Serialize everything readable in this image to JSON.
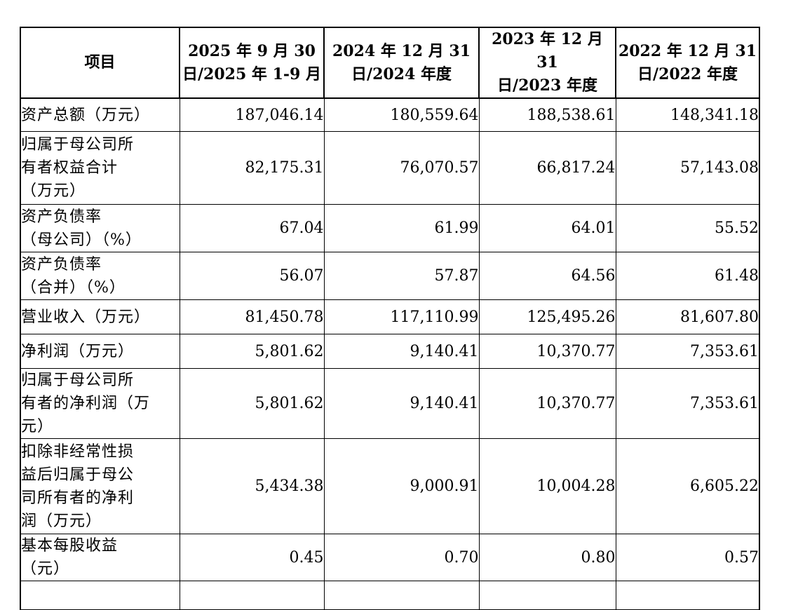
{
  "table": {
    "headers": [
      [
        "项目"
      ],
      [
        "2025 年 9 月 30",
        "日/2025 年 1-9 月"
      ],
      [
        "2024 年 12 月 31",
        "日/2024 年度"
      ],
      [
        "2023 年 12 月 31",
        "日/2023 年度"
      ],
      [
        "2022 年 12 月 31",
        "日/2022 年度"
      ]
    ],
    "rows": [
      {
        "label": [
          "资产总额（万元）"
        ],
        "values": [
          "187,046.14",
          "180,559.64",
          "188,538.61",
          "148,341.18"
        ]
      },
      {
        "label": [
          "归属于母公司所",
          "有者权益合计",
          "（万元）"
        ],
        "values": [
          "82,175.31",
          "76,070.57",
          "66,817.24",
          "57,143.08"
        ]
      },
      {
        "label": [
          "资产负债率",
          "（母公司）（%）"
        ],
        "values": [
          "67.04",
          "61.99",
          "64.01",
          "55.52"
        ]
      },
      {
        "label": [
          "资产负债率",
          "（合并）（%）"
        ],
        "values": [
          "56.07",
          "57.87",
          "64.56",
          "61.48"
        ]
      },
      {
        "label": [
          "营业收入（万元）"
        ],
        "values": [
          "81,450.78",
          "117,110.99",
          "125,495.26",
          "81,607.80"
        ]
      },
      {
        "label": [
          "净利润（万元）"
        ],
        "values": [
          "5,801.62",
          "9,140.41",
          "10,370.77",
          "7,353.61"
        ]
      },
      {
        "label": [
          "归属于母公司所",
          "有者的净利润（万",
          "元）"
        ],
        "values": [
          "5,801.62",
          "9,140.41",
          "10,370.77",
          "7,353.61"
        ]
      },
      {
        "label": [
          "扣除非经常性损",
          "益后归属于母公",
          "司所有者的净利",
          "润（万元）"
        ],
        "values": [
          "5,434.38",
          "9,000.91",
          "10,004.28",
          "6,605.22"
        ]
      },
      {
        "label": [
          "基本每股收益",
          "（元）"
        ],
        "values": [
          "0.45",
          "0.70",
          "0.80",
          "0.57"
        ]
      }
    ]
  }
}
